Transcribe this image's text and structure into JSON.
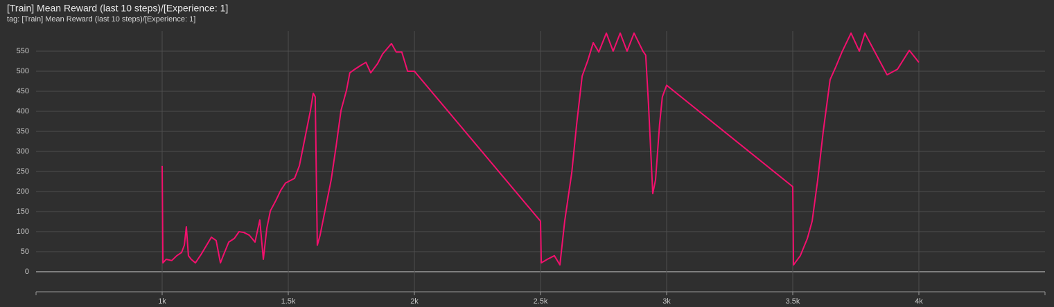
{
  "chart_data": {
    "type": "line",
    "title": "[Train] Mean Reward (last 10 steps)/[Experience: 1]",
    "subtitle": "tag: [Train] Mean Reward (last 10 steps)/[Experience: 1]",
    "color": "#f2106d",
    "grid": true,
    "xlim": [
      500,
      4500
    ],
    "ylim": [
      -50,
      600
    ],
    "xticks": [
      {
        "value": 1000,
        "label": "1k"
      },
      {
        "value": 1500,
        "label": "1.5k"
      },
      {
        "value": 2000,
        "label": "2k"
      },
      {
        "value": 2500,
        "label": "2.5k"
      },
      {
        "value": 3000,
        "label": "3k"
      },
      {
        "value": 3500,
        "label": "3.5k"
      },
      {
        "value": 4000,
        "label": "4k"
      }
    ],
    "yticks": [
      0,
      50,
      100,
      150,
      200,
      250,
      300,
      350,
      400,
      450,
      500,
      550
    ],
    "x": [
      1000,
      1003,
      1016,
      1038,
      1058,
      1077,
      1088,
      1096,
      1104,
      1115,
      1132,
      1154,
      1176,
      1195,
      1214,
      1231,
      1242,
      1264,
      1286,
      1305,
      1324,
      1346,
      1368,
      1387,
      1401,
      1415,
      1429,
      1451,
      1470,
      1489,
      1525,
      1544,
      1566,
      1588,
      1599,
      1607,
      1615,
      1626,
      1648,
      1670,
      1690,
      1709,
      1731,
      1744,
      1764,
      1786,
      1808,
      1827,
      1854,
      1874,
      1909,
      1928,
      1950,
      1973,
      2000,
      2500,
      2503,
      2527,
      2555,
      2577,
      2596,
      2624,
      2643,
      2665,
      2687,
      2709,
      2731,
      2761,
      2788,
      2816,
      2843,
      2871,
      2906,
      2917,
      2928,
      2945,
      2956,
      2972,
      2983,
      3000,
      3500,
      3503,
      3530,
      3558,
      3577,
      3599,
      3621,
      3648,
      3670,
      3695,
      3731,
      3764,
      3786,
      3824,
      3874,
      3915,
      3962,
      4000
    ],
    "values": [
      264,
      22,
      31,
      28,
      40,
      48,
      66,
      112,
      40,
      31,
      22,
      43,
      66,
      86,
      78,
      22,
      40,
      74,
      83,
      100,
      98,
      91,
      74,
      129,
      31,
      109,
      152,
      178,
      203,
      221,
      233,
      264,
      333,
      402,
      445,
      436,
      66,
      91,
      160,
      229,
      315,
      402,
      453,
      496,
      505,
      514,
      522,
      496,
      519,
      543,
      569,
      548,
      548,
      500,
      500,
      126,
      22,
      31,
      40,
      17,
      126,
      247,
      367,
      488,
      526,
      571,
      548,
      595,
      550,
      595,
      550,
      595,
      550,
      540,
      419,
      195,
      229,
      367,
      436,
      465,
      212,
      17,
      40,
      83,
      126,
      229,
      350,
      479,
      510,
      548,
      595,
      550,
      595,
      550,
      491,
      505,
      552,
      522
    ]
  }
}
